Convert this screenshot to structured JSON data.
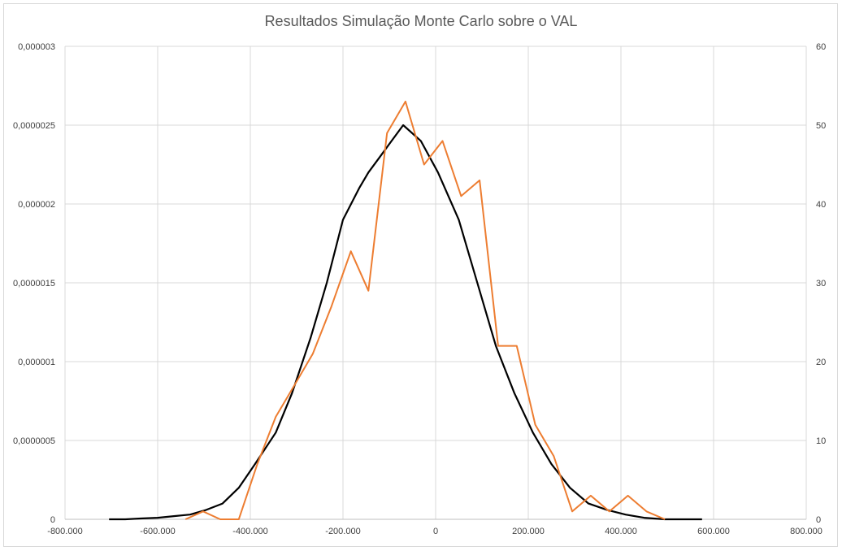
{
  "chart_data": {
    "type": "line",
    "title": "Resultados Simulação Monte Carlo sobre o VAL",
    "xlabel": "",
    "ylabel": "",
    "xlim": [
      -800000,
      800000
    ],
    "ylim": [
      0,
      3e-06
    ],
    "y2lim": [
      0,
      60
    ],
    "grid": true,
    "x_ticks": [
      "-800.000",
      "-600.000",
      "-400.000",
      "-200.000",
      "0",
      "200.000",
      "400.000",
      "600.000",
      "800.000"
    ],
    "y_ticks": [
      "0",
      "0,0000005",
      "0,000001",
      "0,0000015",
      "0,000002",
      "0,0000025",
      "0,000003"
    ],
    "y2_ticks": [
      "0",
      "10",
      "20",
      "30",
      "40",
      "50",
      "60"
    ],
    "colors": {
      "normal_curve": "#000000",
      "histogram_line": "#ED7D31"
    },
    "series": [
      {
        "axis": "left",
        "x": [
          -705000,
          -670000,
          -637000,
          -600000,
          -565000,
          -530000,
          -495000,
          -460000,
          -425000,
          -390000,
          -345000,
          -310000,
          -270000,
          -235000,
          -200000,
          -165000,
          -145000,
          -120000,
          -95000,
          -70000,
          -32000,
          5000,
          50000,
          90000,
          130000,
          170000,
          210000,
          250000,
          290000,
          330000,
          370000,
          410000,
          450000,
          495000,
          540000,
          575000
        ],
        "y": [
          0.0,
          0.0,
          5e-09,
          1e-08,
          2e-08,
          3e-08,
          6e-08,
          1e-07,
          2e-07,
          3.5e-07,
          5.5e-07,
          8e-07,
          1.15e-06,
          1.5e-06,
          1.9e-06,
          2.1e-06,
          2.2e-06,
          2.3e-06,
          2.4e-06,
          2.5e-06,
          2.4e-06,
          2.2e-06,
          1.9e-06,
          1.5e-06,
          1.1e-06,
          8e-07,
          5.5e-07,
          3.5e-07,
          2e-07,
          1e-07,
          6e-08,
          3e-08,
          1e-08,
          0.0,
          0.0,
          0.0
        ]
      },
      {
        "axis": "right",
        "x": [
          -540000,
          -502000,
          -465000,
          -425000,
          -385000,
          -345000,
          -305000,
          -265000,
          -225000,
          -183000,
          -145000,
          -105000,
          -65000,
          -25000,
          15000,
          55000,
          95000,
          135000,
          175000,
          215000,
          255000,
          295000,
          335000,
          375000,
          415000,
          455000,
          495000
        ],
        "y": [
          0,
          1,
          0,
          0,
          7,
          13,
          17,
          21,
          27,
          34,
          29,
          49,
          53,
          45,
          48,
          41,
          43,
          22,
          22,
          12,
          8,
          1,
          3,
          1,
          3,
          1,
          0
        ]
      }
    ]
  }
}
